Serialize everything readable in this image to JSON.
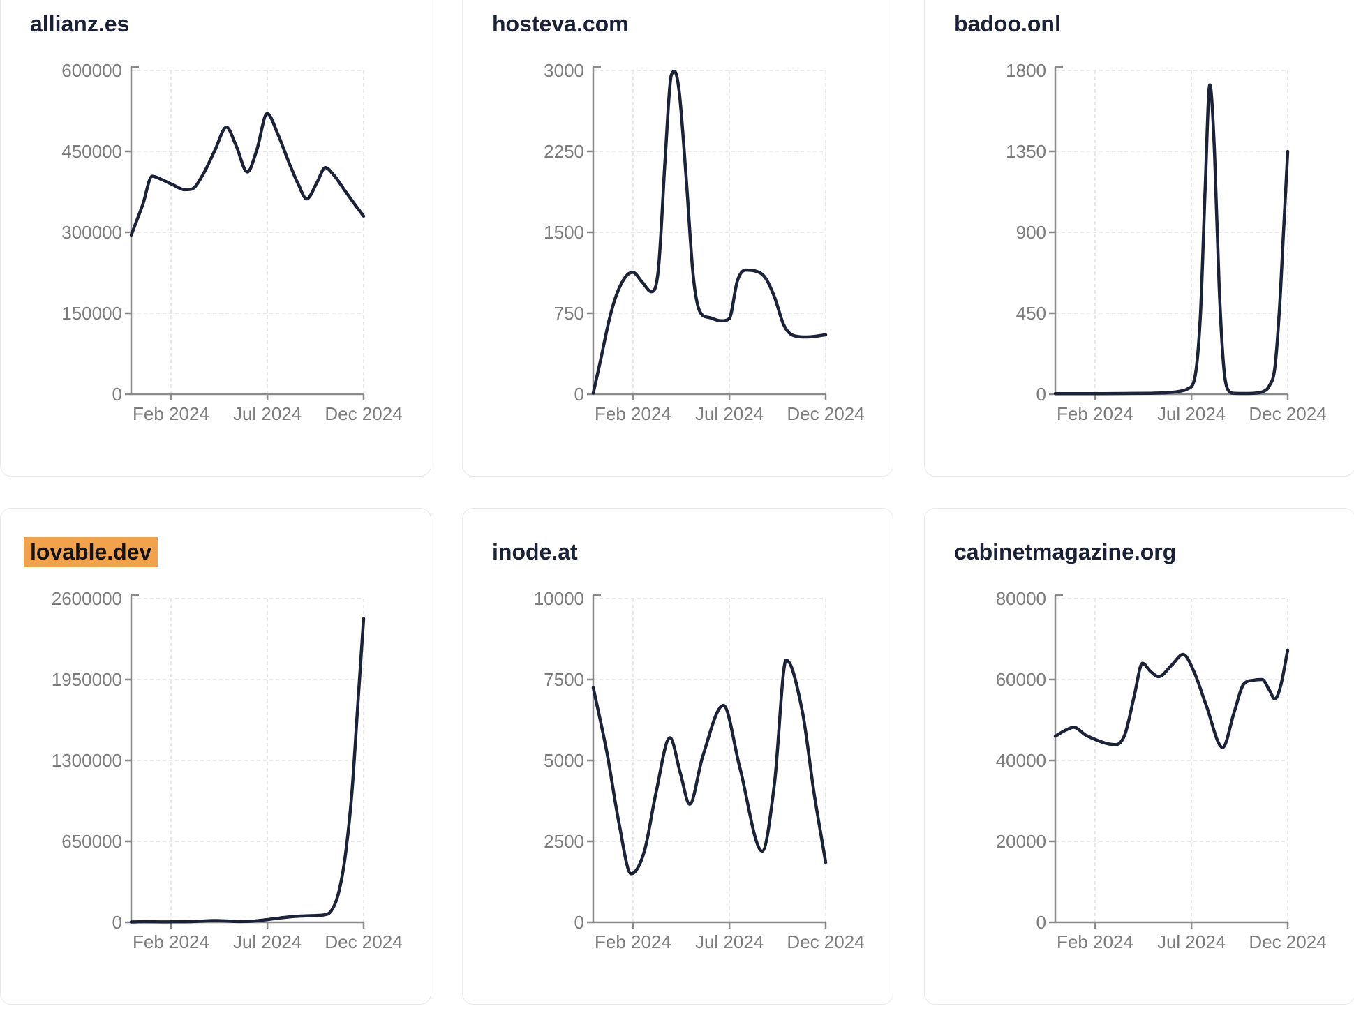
{
  "styles": {
    "line_color": "#1c2338",
    "axis_color": "#8b8b8b",
    "tick_label_color": "#7c7c7c",
    "grid_color": "#e5e6ea",
    "title_color": "#1a2136",
    "highlight_color": "#f0a24c",
    "card_border_color": "#e7e9ed"
  },
  "chart_data": [
    {
      "type": "line",
      "title": "allianz.es",
      "highlighted": false,
      "y_ticks": [
        0,
        150000,
        300000,
        450000,
        600000
      ],
      "x_ticks": [
        "Feb 2024",
        "Jul 2024",
        "Dec 2024"
      ],
      "x_range": [
        "Jan 2024",
        "Dec 2024"
      ],
      "ylim": [
        0,
        600000
      ],
      "points": [
        [
          0,
          295000
        ],
        [
          0.05,
          352000
        ],
        [
          0.09,
          404000
        ],
        [
          0.13,
          398000
        ],
        [
          0.18,
          388000
        ],
        [
          0.23,
          379000
        ],
        [
          0.26,
          380000
        ],
        [
          0.31,
          408000
        ],
        [
          0.36,
          452000
        ],
        [
          0.41,
          495000
        ],
        [
          0.45,
          462000
        ],
        [
          0.5,
          412000
        ],
        [
          0.54,
          452000
        ],
        [
          0.585,
          520000
        ],
        [
          0.63,
          483000
        ],
        [
          0.68,
          428000
        ],
        [
          0.72,
          388000
        ],
        [
          0.755,
          362000
        ],
        [
          0.8,
          393000
        ],
        [
          0.835,
          420000
        ],
        [
          0.87,
          407000
        ],
        [
          0.92,
          377000
        ],
        [
          0.96,
          353000
        ],
        [
          1,
          330000
        ]
      ]
    },
    {
      "type": "line",
      "title": "hosteva.com",
      "highlighted": false,
      "y_ticks": [
        0,
        750,
        1500,
        2250,
        3000
      ],
      "x_ticks": [
        "Feb 2024",
        "Jul 2024",
        "Dec 2024"
      ],
      "x_range": [
        "Jan 2024",
        "Dec 2024"
      ],
      "ylim": [
        0,
        3000
      ],
      "points": [
        [
          0,
          10
        ],
        [
          0.03,
          300
        ],
        [
          0.07,
          700
        ],
        [
          0.1,
          920
        ],
        [
          0.14,
          1090
        ],
        [
          0.17,
          1130
        ],
        [
          0.21,
          1040
        ],
        [
          0.25,
          950
        ],
        [
          0.28,
          1150
        ],
        [
          0.31,
          2200
        ],
        [
          0.335,
          2950
        ],
        [
          0.35,
          2990
        ],
        [
          0.37,
          2800
        ],
        [
          0.4,
          2000
        ],
        [
          0.43,
          1100
        ],
        [
          0.46,
          760
        ],
        [
          0.5,
          710
        ],
        [
          0.55,
          680
        ],
        [
          0.585,
          700
        ],
        [
          0.62,
          1050
        ],
        [
          0.655,
          1150
        ],
        [
          0.7,
          1140
        ],
        [
          0.74,
          1080
        ],
        [
          0.78,
          900
        ],
        [
          0.82,
          640
        ],
        [
          0.86,
          545
        ],
        [
          0.92,
          530
        ],
        [
          1,
          550
        ]
      ]
    },
    {
      "type": "line",
      "title": "badoo.onl",
      "highlighted": false,
      "y_ticks": [
        0,
        450,
        900,
        1350,
        1800
      ],
      "x_ticks": [
        "Feb 2024",
        "Jul 2024",
        "Dec 2024"
      ],
      "x_range": [
        "Jan 2024",
        "Dec 2024"
      ],
      "ylim": [
        0,
        1800
      ],
      "points": [
        [
          0,
          3
        ],
        [
          0.1,
          3
        ],
        [
          0.2,
          3
        ],
        [
          0.3,
          4
        ],
        [
          0.4,
          5
        ],
        [
          0.48,
          8
        ],
        [
          0.53,
          15
        ],
        [
          0.57,
          30
        ],
        [
          0.6,
          90
        ],
        [
          0.625,
          450
        ],
        [
          0.645,
          1150
        ],
        [
          0.665,
          1720
        ],
        [
          0.685,
          1350
        ],
        [
          0.705,
          600
        ],
        [
          0.725,
          150
        ],
        [
          0.745,
          20
        ],
        [
          0.77,
          5
        ],
        [
          0.82,
          4
        ],
        [
          0.86,
          6
        ],
        [
          0.895,
          15
        ],
        [
          0.92,
          45
        ],
        [
          0.945,
          150
        ],
        [
          0.965,
          480
        ],
        [
          0.98,
          850
        ],
        [
          1,
          1350
        ]
      ]
    },
    {
      "type": "line",
      "title": "lovable.dev",
      "highlighted": true,
      "y_ticks": [
        0,
        650000,
        1300000,
        1950000,
        2600000
      ],
      "x_ticks": [
        "Feb 2024",
        "Jul 2024",
        "Dec 2024"
      ],
      "x_range": [
        "Jan 2024",
        "Dec 2024"
      ],
      "ylim": [
        0,
        2600000
      ],
      "points": [
        [
          0,
          3000
        ],
        [
          0.06,
          5000
        ],
        [
          0.1,
          4000
        ],
        [
          0.15,
          3500
        ],
        [
          0.2,
          4500
        ],
        [
          0.25,
          5000
        ],
        [
          0.3,
          9000
        ],
        [
          0.36,
          14000
        ],
        [
          0.41,
          11000
        ],
        [
          0.46,
          6000
        ],
        [
          0.52,
          9000
        ],
        [
          0.585,
          22000
        ],
        [
          0.64,
          35000
        ],
        [
          0.7,
          47000
        ],
        [
          0.75,
          52000
        ],
        [
          0.79,
          55000
        ],
        [
          0.83,
          60000
        ],
        [
          0.86,
          90000
        ],
        [
          0.89,
          220000
        ],
        [
          0.92,
          520000
        ],
        [
          0.95,
          1050000
        ],
        [
          0.975,
          1750000
        ],
        [
          1,
          2440000
        ]
      ]
    },
    {
      "type": "line",
      "title": "inode.at",
      "highlighted": false,
      "y_ticks": [
        0,
        2500,
        5000,
        7500,
        10000
      ],
      "x_ticks": [
        "Feb 2024",
        "Jul 2024",
        "Dec 2024"
      ],
      "x_range": [
        "Jan 2024",
        "Dec 2024"
      ],
      "ylim": [
        0,
        10000
      ],
      "points": [
        [
          0,
          7250
        ],
        [
          0.06,
          5200
        ],
        [
          0.11,
          3100
        ],
        [
          0.163,
          1500
        ],
        [
          0.22,
          2200
        ],
        [
          0.27,
          4000
        ],
        [
          0.33,
          5700
        ],
        [
          0.375,
          4600
        ],
        [
          0.415,
          3650
        ],
        [
          0.47,
          5100
        ],
        [
          0.56,
          6700
        ],
        [
          0.63,
          4800
        ],
        [
          0.727,
          2200
        ],
        [
          0.78,
          4300
        ],
        [
          0.83,
          8100
        ],
        [
          0.9,
          6500
        ],
        [
          0.95,
          4000
        ],
        [
          1,
          1850
        ]
      ]
    },
    {
      "type": "line",
      "title": "cabinetmagazine.org",
      "highlighted": false,
      "y_ticks": [
        0,
        20000,
        40000,
        60000,
        80000
      ],
      "x_ticks": [
        "Feb 2024",
        "Jul 2024",
        "Dec 2024"
      ],
      "x_range": [
        "Jan 2024",
        "Dec 2024"
      ],
      "ylim": [
        0,
        80000
      ],
      "points": [
        [
          0,
          46000
        ],
        [
          0.045,
          47500
        ],
        [
          0.08,
          48200
        ],
        [
          0.13,
          46300
        ],
        [
          0.18,
          45000
        ],
        [
          0.22,
          44200
        ],
        [
          0.26,
          43900
        ],
        [
          0.3,
          46500
        ],
        [
          0.34,
          56000
        ],
        [
          0.375,
          64000
        ],
        [
          0.41,
          62000
        ],
        [
          0.445,
          60700
        ],
        [
          0.5,
          63500
        ],
        [
          0.55,
          66200
        ],
        [
          0.6,
          61500
        ],
        [
          0.65,
          53500
        ],
        [
          0.72,
          43200
        ],
        [
          0.77,
          52000
        ],
        [
          0.81,
          58800
        ],
        [
          0.85,
          59800
        ],
        [
          0.89,
          60000
        ],
        [
          0.92,
          57500
        ],
        [
          0.945,
          55200
        ],
        [
          0.97,
          58500
        ],
        [
          1,
          67300
        ]
      ]
    }
  ]
}
